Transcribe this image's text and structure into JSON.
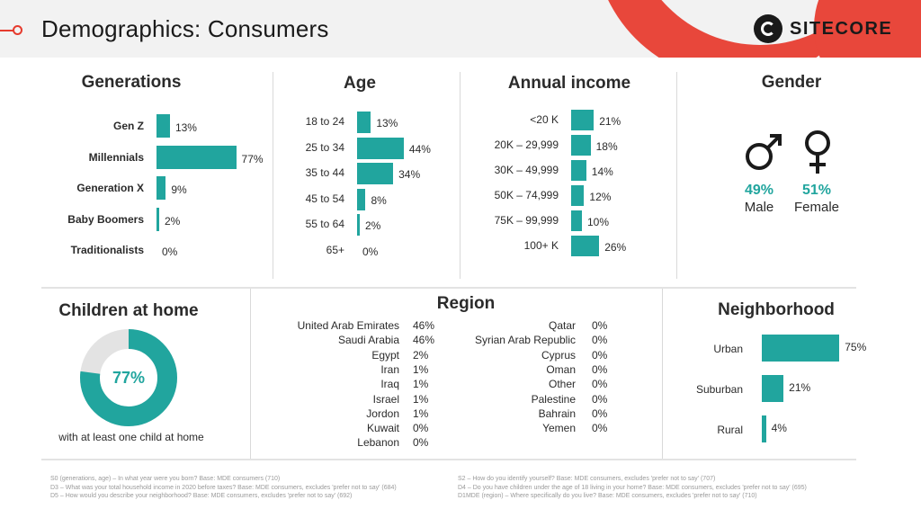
{
  "header": {
    "title": "Demographics: Consumers",
    "logo_text": "SITECORE"
  },
  "colors": {
    "accent": "#21a59e",
    "brand_red": "#e8473b",
    "ring_bg": "#e3e3e3"
  },
  "generations": {
    "title": "Generations",
    "rows": [
      {
        "label": "Gen Z",
        "value": 13,
        "text": "13%"
      },
      {
        "label": "Millennials",
        "value": 77,
        "text": "77%"
      },
      {
        "label": "Generation X",
        "value": 9,
        "text": "9%"
      },
      {
        "label": "Baby Boomers",
        "value": 2,
        "text": "2%"
      },
      {
        "label": "Traditionalists",
        "value": 0,
        "text": "0%"
      }
    ]
  },
  "age": {
    "title": "Age",
    "rows": [
      {
        "label": "18 to 24",
        "value": 13,
        "text": "13%"
      },
      {
        "label": "25 to 34",
        "value": 44,
        "text": "44%"
      },
      {
        "label": "35 to 44",
        "value": 34,
        "text": "34%"
      },
      {
        "label": "45 to 54",
        "value": 8,
        "text": "8%"
      },
      {
        "label": "55 to 64",
        "value": 2,
        "text": "2%"
      },
      {
        "label": "65+",
        "value": 0,
        "text": "0%"
      }
    ]
  },
  "income": {
    "title": "Annual income",
    "rows": [
      {
        "label": "<20 K",
        "value": 21,
        "text": "21%"
      },
      {
        "label": "20K – 29,999",
        "value": 18,
        "text": "18%"
      },
      {
        "label": "30K – 49,999",
        "value": 14,
        "text": "14%"
      },
      {
        "label": "50K – 74,999",
        "value": 12,
        "text": "12%"
      },
      {
        "label": "75K – 99,999",
        "value": 10,
        "text": "10%"
      },
      {
        "label": "100+ K",
        "value": 26,
        "text": "26%"
      }
    ]
  },
  "gender": {
    "title": "Gender",
    "male": {
      "pct": "49%",
      "label": "Male",
      "icon": "male-symbol-icon"
    },
    "female": {
      "pct": "51%",
      "label": "Female",
      "icon": "female-symbol-icon"
    }
  },
  "children": {
    "title": "Children at home",
    "value": 77,
    "pct_text": "77%",
    "caption": "with at least one child at home"
  },
  "region": {
    "title": "Region",
    "left": [
      {
        "name": "United Arab Emirates",
        "value": "46%"
      },
      {
        "name": "Saudi Arabia",
        "value": "46%"
      },
      {
        "name": "Egypt",
        "value": "2%"
      },
      {
        "name": "Iran",
        "value": "1%"
      },
      {
        "name": "Iraq",
        "value": "1%"
      },
      {
        "name": "Israel",
        "value": "1%"
      },
      {
        "name": "Jordon",
        "value": "1%"
      },
      {
        "name": "Kuwait",
        "value": "0%"
      },
      {
        "name": "Lebanon",
        "value": "0%"
      }
    ],
    "right": [
      {
        "name": "Qatar",
        "value": "0%"
      },
      {
        "name": "Syrian Arab Republic",
        "value": "0%"
      },
      {
        "name": "Cyprus",
        "value": "0%"
      },
      {
        "name": "Oman",
        "value": "0%"
      },
      {
        "name": "Other",
        "value": "0%"
      },
      {
        "name": "Palestine",
        "value": "0%"
      },
      {
        "name": "Bahrain",
        "value": "0%"
      },
      {
        "name": "Yemen",
        "value": "0%"
      }
    ]
  },
  "neighborhood": {
    "title": "Neighborhood",
    "rows": [
      {
        "label": "Urban",
        "value": 75,
        "text": "75%"
      },
      {
        "label": "Suburban",
        "value": 21,
        "text": "21%"
      },
      {
        "label": "Rural",
        "value": 4,
        "text": "4%"
      }
    ]
  },
  "footnotes": {
    "left": [
      "S0 (generations, age) – In what year were you born? Base: MDE consumers (710)",
      "D3 – What was your total household income in 2020 before taxes? Base: MDE consumers, excludes 'prefer not to say' (684)",
      "D5 – How would you describe your neighborhood? Base: MDE consumers, excludes 'prefer not to say' (692)"
    ],
    "right": [
      "S2 – How do you identify yourself? Base: MDE consumers, excludes 'prefer not to say' (707)",
      "D4 – Do you have children under the age of 18 living in your home? Base: MDE consumers, excludes 'prefer not to say' (695)",
      "D1MDE (region) – Where specifically do you live? Base: MDE consumers, excludes 'prefer not to say' (710)"
    ]
  }
}
